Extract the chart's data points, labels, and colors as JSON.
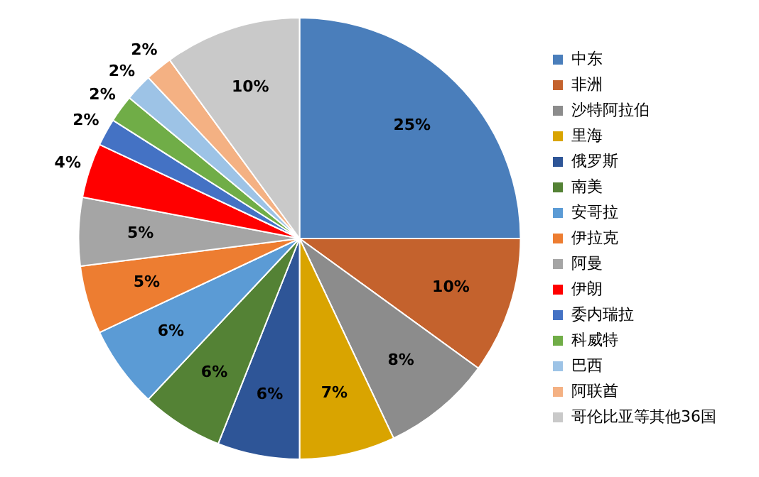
{
  "chart_data": {
    "type": "pie",
    "categories": [
      "中东",
      "非洲",
      "沙特阿拉伯",
      "里海",
      "俄罗斯",
      "南美",
      "安哥拉",
      "伊拉克",
      "阿曼",
      "伊朗",
      "委内瑞拉",
      "科威特",
      "巴西",
      "阿联酋",
      "哥伦比亚等其他36国"
    ],
    "values": [
      25,
      10,
      8,
      7,
      6,
      6,
      6,
      5,
      5,
      4,
      2,
      2,
      2,
      2,
      10
    ],
    "value_labels": [
      "25%",
      "10%",
      "8%",
      "7%",
      "6%",
      "6%",
      "6%",
      "5%",
      "5%",
      "4%",
      "2%",
      "2%",
      "2%",
      "2%",
      "10%"
    ],
    "colors": [
      "#4a7ebb",
      "#c4622d",
      "#8c8c8c",
      "#d9a400",
      "#2e5597",
      "#548235",
      "#5b9bd5",
      "#ed7d31",
      "#a5a5a5",
      "#ff0000",
      "#4472c4",
      "#70ad47",
      "#9dc3e6",
      "#f4b183",
      "#c9c9c9"
    ],
    "legend": "right"
  }
}
